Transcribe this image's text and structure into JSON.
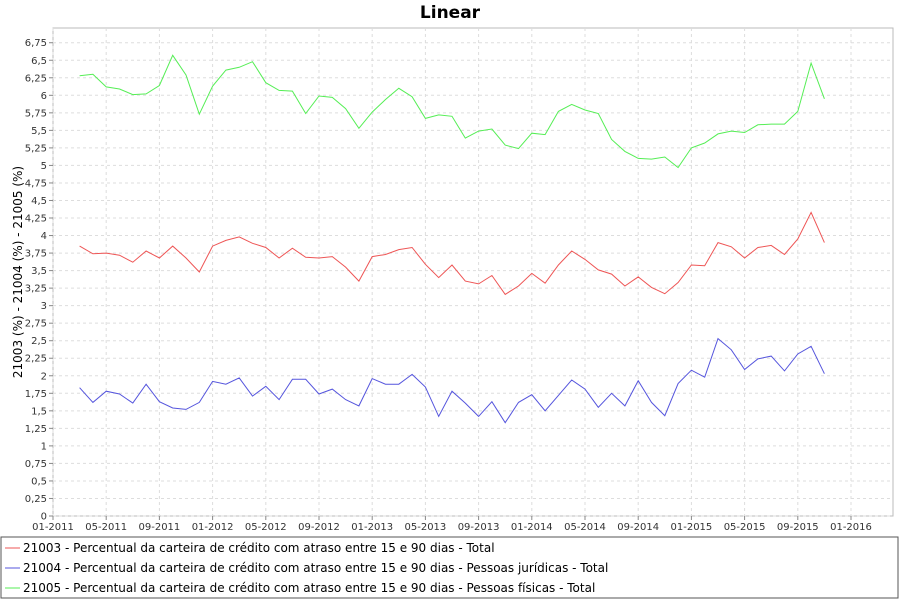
{
  "chart_data": {
    "type": "line",
    "title": "Linear",
    "xlabel": "",
    "ylabel": "21003 (%) - 21004 (%) - 21005 (%)",
    "grid": true,
    "legend_position": "bottom",
    "x_ticks": [
      "01-2011",
      "05-2011",
      "09-2011",
      "01-2012",
      "05-2012",
      "09-2012",
      "01-2013",
      "05-2013",
      "09-2013",
      "01-2014",
      "05-2014",
      "09-2014",
      "01-2015",
      "05-2015",
      "09-2015",
      "01-2016"
    ],
    "x_range": [
      "2011-01",
      "2016-01"
    ],
    "y_ticks": [
      "0",
      "0,25",
      "0,5",
      "0,75",
      "1",
      "1,25",
      "1,5",
      "1,75",
      "2",
      "2,25",
      "2,5",
      "2,75",
      "3",
      "3,25",
      "3,5",
      "3,75",
      "4",
      "4,25",
      "4,5",
      "4,75",
      "5",
      "5,25",
      "5,5",
      "5,75",
      "6",
      "6,25",
      "6,5",
      "6,75"
    ],
    "ylim": [
      0,
      6.75
    ],
    "x": [
      "2011-03",
      "2011-04",
      "2011-05",
      "2011-06",
      "2011-07",
      "2011-08",
      "2011-09",
      "2011-10",
      "2011-11",
      "2011-12",
      "2012-01",
      "2012-02",
      "2012-03",
      "2012-04",
      "2012-05",
      "2012-06",
      "2012-07",
      "2012-08",
      "2012-09",
      "2012-10",
      "2012-11",
      "2012-12",
      "2013-01",
      "2013-02",
      "2013-03",
      "2013-04",
      "2013-05",
      "2013-06",
      "2013-07",
      "2013-08",
      "2013-09",
      "2013-10",
      "2013-11",
      "2013-12",
      "2014-01",
      "2014-02",
      "2014-03",
      "2014-04",
      "2014-05",
      "2014-06",
      "2014-07",
      "2014-08",
      "2014-09",
      "2014-10",
      "2014-11",
      "2014-12",
      "2015-01",
      "2015-02",
      "2015-03",
      "2015-04",
      "2015-05",
      "2015-06",
      "2015-07",
      "2015-08",
      "2015-09",
      "2015-10",
      "2015-11"
    ],
    "series": [
      {
        "name": "21003 - Percentual da carteira de crédito com atraso entre 15 e 90 dias - Total",
        "color": "#ee5555",
        "values": [
          3.85,
          3.74,
          3.75,
          3.72,
          3.62,
          3.78,
          3.68,
          3.85,
          3.68,
          3.48,
          3.85,
          3.93,
          3.98,
          3.89,
          3.83,
          3.68,
          3.82,
          3.69,
          3.68,
          3.7,
          3.55,
          3.35,
          3.7,
          3.73,
          3.8,
          3.83,
          3.59,
          3.4,
          3.58,
          3.35,
          3.31,
          3.43,
          3.16,
          3.28,
          3.46,
          3.32,
          3.58,
          3.78,
          3.66,
          3.51,
          3.45,
          3.28,
          3.41,
          3.26,
          3.17,
          3.33,
          3.58,
          3.57,
          3.9,
          3.84,
          3.68,
          3.83,
          3.86,
          3.73,
          3.95,
          4.33,
          3.9
        ]
      },
      {
        "name": "21004 - Percentual da carteira de crédito com atraso entre 15 e 90 dias - Pessoas jurídicas - Total",
        "color": "#5555dd",
        "values": [
          1.83,
          1.62,
          1.78,
          1.74,
          1.61,
          1.88,
          1.63,
          1.54,
          1.52,
          1.62,
          1.92,
          1.88,
          1.97,
          1.71,
          1.85,
          1.66,
          1.95,
          1.95,
          1.74,
          1.81,
          1.66,
          1.57,
          1.96,
          1.88,
          1.88,
          2.02,
          1.84,
          1.42,
          1.78,
          1.61,
          1.42,
          1.63,
          1.33,
          1.62,
          1.73,
          1.5,
          1.72,
          1.94,
          1.81,
          1.55,
          1.75,
          1.57,
          1.93,
          1.62,
          1.43,
          1.89,
          2.08,
          1.98,
          2.53,
          2.37,
          2.09,
          2.24,
          2.28,
          2.07,
          2.31,
          2.42,
          2.03
        ]
      },
      {
        "name": "21005 - Percentual da carteira de crédito com atraso entre 15 e 90 dias - Pessoas físicas - Total",
        "color": "#55ee55",
        "values": [
          6.28,
          6.3,
          6.12,
          6.09,
          6.01,
          6.02,
          6.14,
          6.57,
          6.29,
          5.73,
          6.13,
          6.36,
          6.4,
          6.48,
          6.18,
          6.07,
          6.06,
          5.74,
          5.99,
          5.97,
          5.81,
          5.53,
          5.76,
          5.94,
          6.1,
          5.98,
          5.67,
          5.72,
          5.7,
          5.39,
          5.49,
          5.52,
          5.29,
          5.24,
          5.46,
          5.44,
          5.77,
          5.87,
          5.79,
          5.74,
          5.37,
          5.2,
          5.1,
          5.09,
          5.12,
          4.97,
          5.25,
          5.32,
          5.45,
          5.49,
          5.47,
          5.58,
          5.59,
          5.59,
          5.77,
          6.46,
          5.95
        ]
      }
    ]
  }
}
